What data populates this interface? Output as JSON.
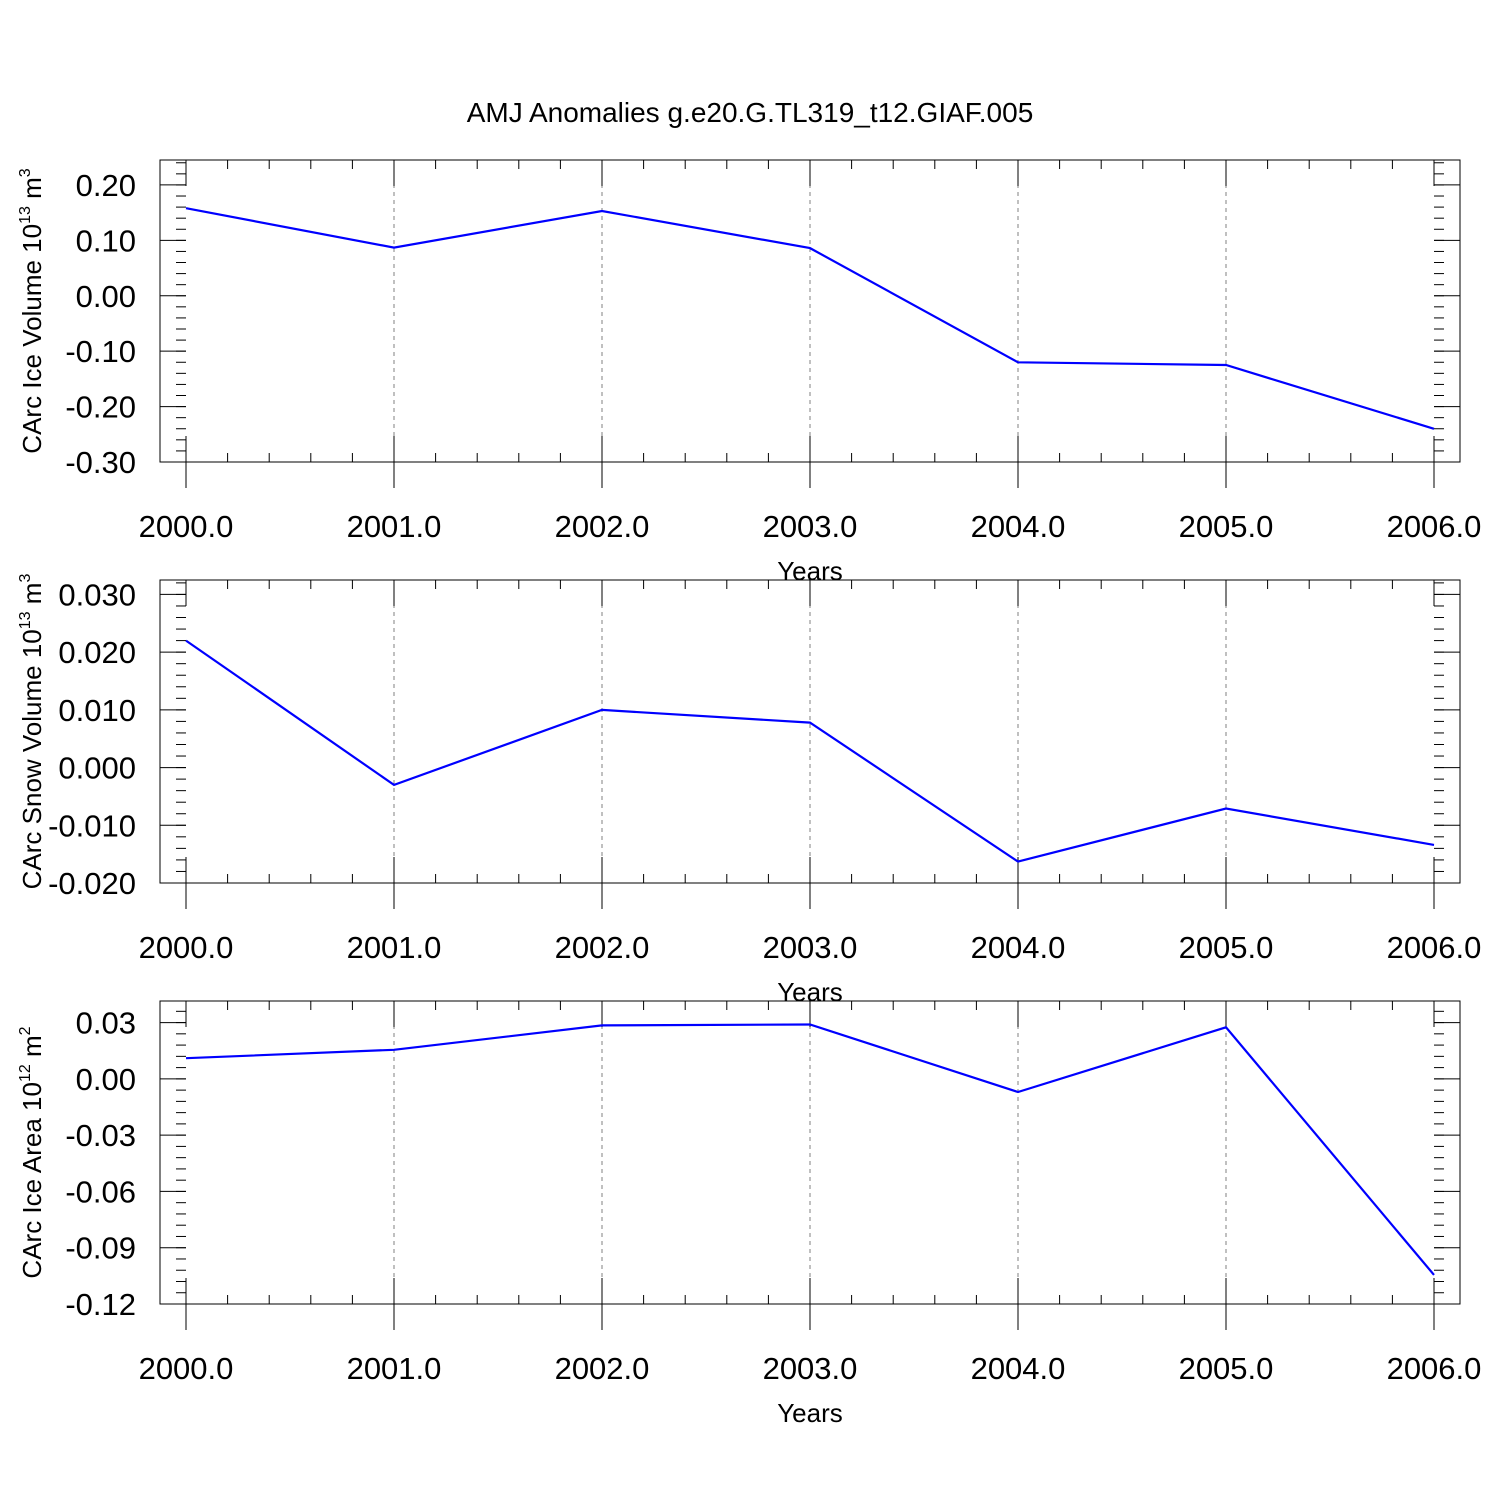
{
  "chart_data": {
    "title": "AMJ Anomalies g.e20.G.TL319_t12.GIAF.005",
    "line_color": "#0000ff",
    "grid_color": "#808080",
    "panels": [
      {
        "type": "line",
        "ylabel": "CArc Ice Volume 10",
        "ylabel_exp": "13",
        "ylabel_unit": " m",
        "ylabel_unit_exp": "3",
        "xlabel": "Years",
        "xlim": [
          2000,
          2006
        ],
        "ylim": [
          -0.3,
          0.245
        ],
        "x_ticks": [
          2000,
          2001,
          2002,
          2003,
          2004,
          2005,
          2006
        ],
        "x_tick_labels": [
          "2000.0",
          "2001.0",
          "2002.0",
          "2003.0",
          "2004.0",
          "2005.0",
          "2006.0"
        ],
        "y_ticks": [
          0.2,
          0.1,
          0.0,
          -0.1,
          -0.2,
          -0.3
        ],
        "y_tick_labels": [
          "0.20",
          "0.10",
          "0.00",
          "-0.10",
          "-0.20",
          "-0.30"
        ],
        "x_minor_step": 0.2,
        "y_minor_step": 0.02,
        "x_gridlines": [
          2001,
          2002,
          2003,
          2004,
          2005
        ],
        "x": [
          2000,
          2001,
          2002,
          2003,
          2004,
          2005,
          2006
        ],
        "y": [
          0.158,
          0.087,
          0.153,
          0.086,
          -0.12,
          -0.125,
          -0.24
        ]
      },
      {
        "type": "line",
        "ylabel": "CArc Snow Volume 10",
        "ylabel_exp": "13",
        "ylabel_unit": " m",
        "ylabel_unit_exp": "3",
        "xlabel": "Years",
        "xlim": [
          2000,
          2006
        ],
        "ylim": [
          -0.02,
          0.0325
        ],
        "x_ticks": [
          2000,
          2001,
          2002,
          2003,
          2004,
          2005,
          2006
        ],
        "x_tick_labels": [
          "2000.0",
          "2001.0",
          "2002.0",
          "2003.0",
          "2004.0",
          "2005.0",
          "2006.0"
        ],
        "y_ticks": [
          0.03,
          0.02,
          0.01,
          0.0,
          -0.01,
          -0.02
        ],
        "y_tick_labels": [
          "0.030",
          "0.020",
          "0.010",
          "0.000",
          "-0.010",
          "-0.020"
        ],
        "x_minor_step": 0.2,
        "y_minor_step": 0.002,
        "x_gridlines": [
          2001,
          2002,
          2003,
          2004,
          2005
        ],
        "x": [
          2000,
          2001,
          2002,
          2003,
          2004,
          2005,
          2006
        ],
        "y": [
          0.022,
          -0.003,
          0.01,
          0.0078,
          -0.0163,
          -0.0071,
          -0.0134
        ]
      },
      {
        "type": "line",
        "ylabel": "CArc Ice Area 10",
        "ylabel_exp": "12",
        "ylabel_unit": " m",
        "ylabel_unit_exp": "2",
        "xlabel": "Years",
        "xlim": [
          2000,
          2006
        ],
        "ylim": [
          -0.12,
          0.0415
        ],
        "x_ticks": [
          2000,
          2001,
          2002,
          2003,
          2004,
          2005,
          2006
        ],
        "x_tick_labels": [
          "2000.0",
          "2001.0",
          "2002.0",
          "2003.0",
          "2004.0",
          "2005.0",
          "2006.0"
        ],
        "y_ticks": [
          0.03,
          0.0,
          -0.03,
          -0.06,
          -0.09,
          -0.12
        ],
        "y_tick_labels": [
          "0.03",
          "0.00",
          "-0.03",
          "-0.06",
          "-0.09",
          "-0.12"
        ],
        "x_minor_step": 0.2,
        "y_minor_step": 0.006,
        "x_gridlines": [
          2001,
          2002,
          2003,
          2004,
          2005
        ],
        "x": [
          2000,
          2001,
          2002,
          2003,
          2004,
          2005,
          2006
        ],
        "y": [
          0.011,
          0.0155,
          0.0285,
          0.029,
          -0.007,
          0.0275,
          -0.1045
        ]
      }
    ]
  }
}
